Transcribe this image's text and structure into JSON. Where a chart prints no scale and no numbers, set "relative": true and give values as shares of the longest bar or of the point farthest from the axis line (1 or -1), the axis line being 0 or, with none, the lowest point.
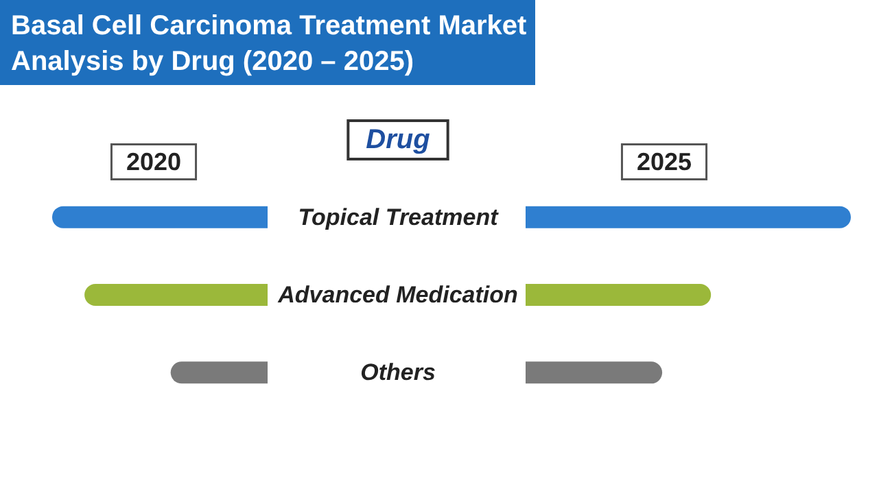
{
  "chart_data": [
    {
      "type": "bar",
      "orientation": "horizontal",
      "relative": true,
      "title": "Basal Cell Carcinoma Treatment Market\nAnalysis by Drug (2020 – 2025)",
      "ylabel": "Drug",
      "categories": [
        "Topical Treatment",
        "Advanced Medication",
        "Others"
      ],
      "series": [
        {
          "name": "2020",
          "colors": [
            "#2f7fd0",
            "#9bb83a",
            "#7a7a7a"
          ],
          "values": [
            1,
            0.85,
            0.45
          ]
        }
      ]
    },
    {
      "type": "bar",
      "orientation": "horizontal",
      "relative": true,
      "categories": [
        null,
        null,
        null
      ],
      "series": [
        {
          "name": "2025",
          "colors": [
            "#2f7fd0",
            "#9bb83a",
            "#7a7a7a"
          ],
          "values": [
            1,
            0.57,
            0.42
          ]
        }
      ]
    }
  ]
}
